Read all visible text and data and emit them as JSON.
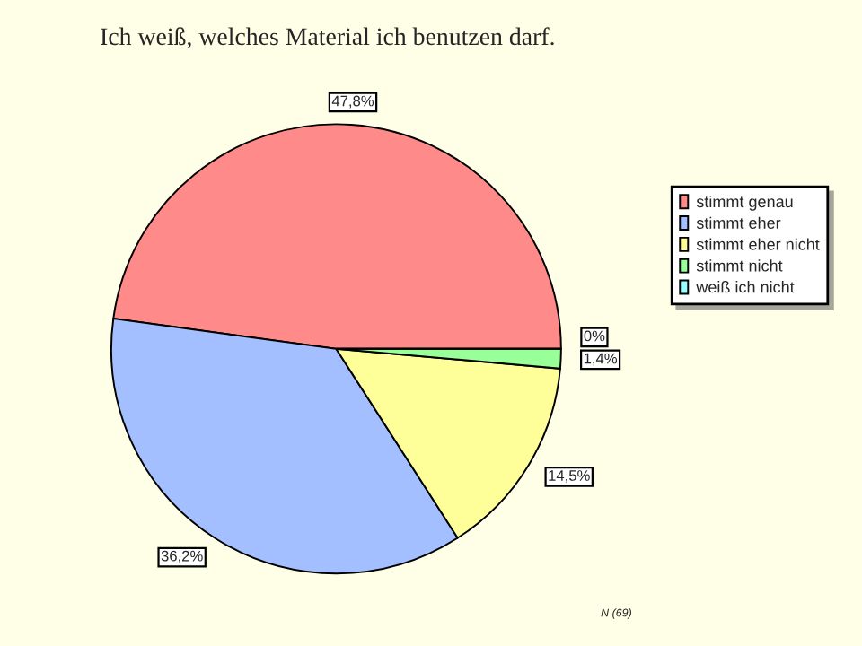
{
  "chart_data": {
    "type": "pie",
    "title": "Ich weiß, welches Material ich benutzen darf.",
    "categories": [
      "stimmt genau",
      "stimmt eher",
      "stimmt eher nicht",
      "stimmt nicht",
      "weiß ich nicht"
    ],
    "values": [
      47.8,
      36.2,
      14.5,
      1.4,
      0
    ],
    "value_labels": [
      "47,8%",
      "36,2%",
      "14,5%",
      "1,4%",
      "0%"
    ],
    "colors": [
      "#ff8a8a",
      "#a3bfff",
      "#ffff99",
      "#99ff99",
      "#99ffff"
    ],
    "legend": "right",
    "annotations": [
      "N (69)"
    ]
  }
}
